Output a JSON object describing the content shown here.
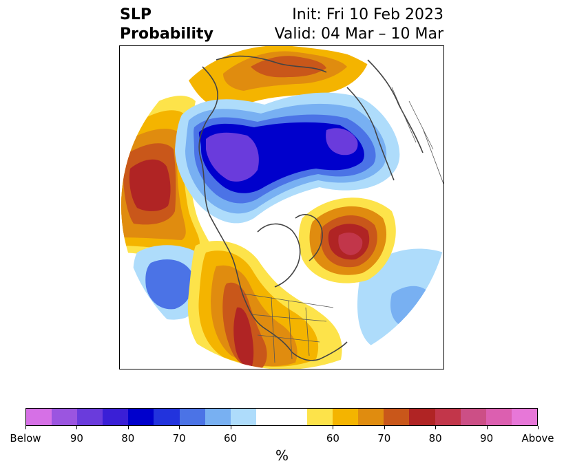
{
  "header": {
    "title_line1": "SLP",
    "title_line2": "Probability",
    "init_text": "Init: Fri 10 Feb 2023",
    "valid_text": "Valid: 04 Mar – 10 Mar"
  },
  "colorbar": {
    "unit_label": "%",
    "colors": [
      "#d670e6",
      "#9b55e0",
      "#6a3bdc",
      "#3a1fd6",
      "#0000cc",
      "#2233dd",
      "#4b73e6",
      "#78b0f2",
      "#aedcfb",
      "#ffffff",
      "#ffffff",
      "#fde34a",
      "#f4b400",
      "#e08c0f",
      "#c9571a",
      "#b02424",
      "#c2364a",
      "#cc4f86",
      "#dc5fb0",
      "#e777d8"
    ],
    "tick_labels": [
      "Below",
      "90",
      "80",
      "70",
      "60",
      "60",
      "70",
      "80",
      "90",
      "Above"
    ]
  },
  "map": {
    "region": "Northern Hemisphere polar stereographic",
    "categories": [
      "below-normal probability (blue)",
      "above-normal probability (orange/red)"
    ],
    "colors": {
      "blue_light": "#aedcfb",
      "blue_mid": "#78b0f2",
      "blue_med": "#4b73e6",
      "blue_deep": "#2233dd",
      "blue_core": "#0000cc",
      "purple": "#6a3bdc",
      "yellow": "#fde34a",
      "gold": "#f4b400",
      "orange": "#e08c0f",
      "rust": "#c9571a",
      "red": "#b02424",
      "pink": "#c2364a"
    }
  }
}
